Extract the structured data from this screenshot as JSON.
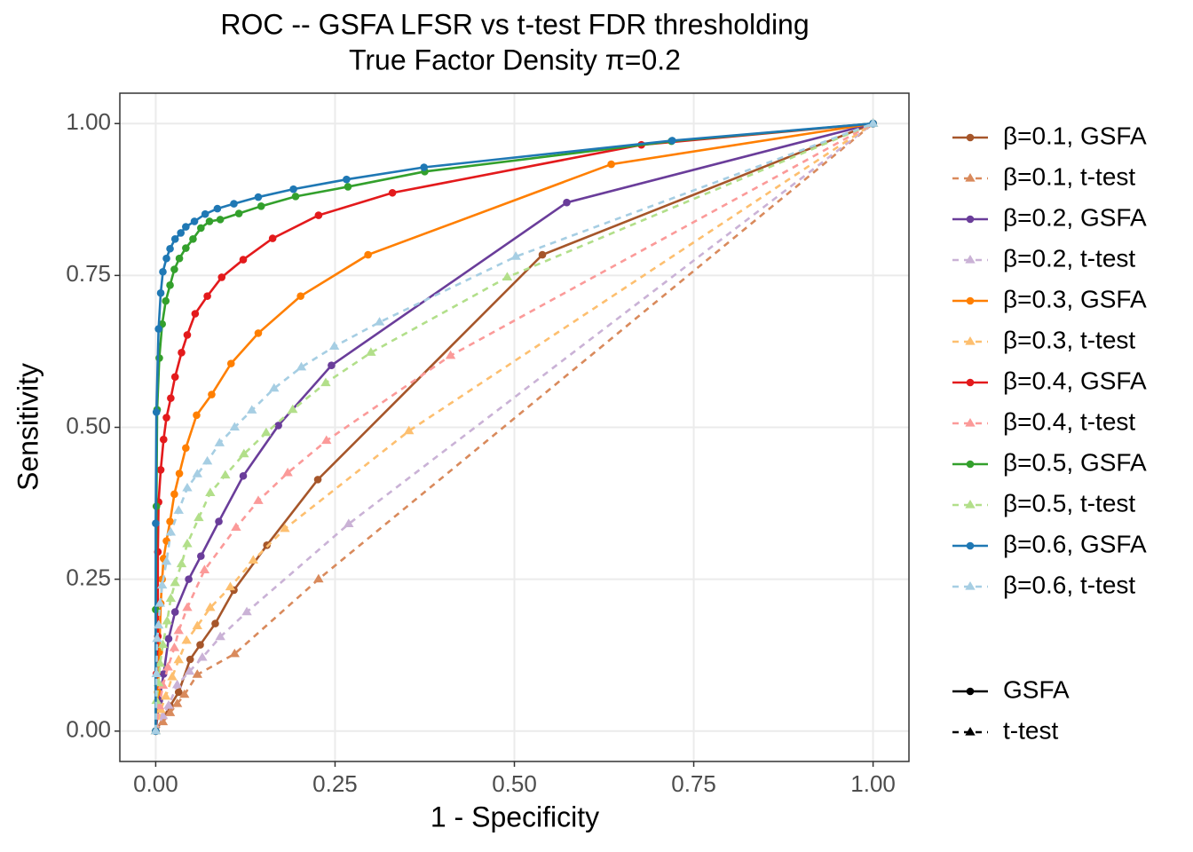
{
  "chart_data": {
    "type": "line",
    "title": "ROC -- GSFA LFSR vs t-test FDR thresholding",
    "subtitle": "True Factor Density π=0.2",
    "x_label": "1 - Specificity",
    "y_label": "Sensitivity",
    "xlim": [
      -0.05,
      1.05
    ],
    "ylim": [
      -0.05,
      1.05
    ],
    "xticks": [
      {
        "value": 0,
        "label": "0.00"
      },
      {
        "value": 0.25,
        "label": "0.25"
      },
      {
        "value": 0.5,
        "label": "0.50"
      },
      {
        "value": 0.75,
        "label": "0.75"
      },
      {
        "value": 1,
        "label": "1.00"
      }
    ],
    "yticks": [
      {
        "value": 0,
        "label": "0.00"
      },
      {
        "value": 0.25,
        "label": "0.25"
      },
      {
        "value": 0.5,
        "label": "0.50"
      },
      {
        "value": 0.75,
        "label": "0.75"
      },
      {
        "value": 1,
        "label": "1.00"
      }
    ],
    "grid": true,
    "legend_position": "right",
    "linetype_legend": [
      {
        "name": "GSFA",
        "linetype": "solid",
        "marker": "circle"
      },
      {
        "name": "t-test",
        "linetype": "dashed",
        "marker": "triangle"
      }
    ],
    "series": [
      {
        "name": "β=0.1, GSFA",
        "color": "#a6562a",
        "linetype": "solid",
        "marker": "circle",
        "x": [
          0,
          0.02,
          0.032,
          0.048,
          0.062,
          0.083,
          0.109,
          0.155,
          0.226,
          0.539,
          1
        ],
        "values": [
          0,
          0.041,
          0.064,
          0.118,
          0.142,
          0.177,
          0.232,
          0.306,
          0.414,
          0.784,
          1
        ]
      },
      {
        "name": "β=0.1, t-test",
        "color": "#d98a5c",
        "linetype": "dashed",
        "marker": "triangle",
        "x": [
          0,
          0.01,
          0.02,
          0.03,
          0.04,
          0.058,
          0.11,
          0.227,
          1
        ],
        "values": [
          0,
          0.015,
          0.03,
          0.045,
          0.06,
          0.093,
          0.127,
          0.25,
          1
        ]
      },
      {
        "name": "β=0.2, GSFA",
        "color": "#6a3d9a",
        "linetype": "solid",
        "marker": "circle",
        "x": [
          0,
          0.005,
          0.011,
          0.018,
          0.027,
          0.046,
          0.063,
          0.088,
          0.122,
          0.171,
          0.245,
          0.573,
          1
        ],
        "values": [
          0,
          0.05,
          0.094,
          0.152,
          0.196,
          0.25,
          0.288,
          0.345,
          0.42,
          0.503,
          0.602,
          0.87,
          1
        ]
      },
      {
        "name": "β=0.2, t-test",
        "color": "#cab2d6",
        "linetype": "dashed",
        "marker": "triangle",
        "x": [
          0,
          0.01,
          0.018,
          0.03,
          0.047,
          0.065,
          0.09,
          0.127,
          0.269,
          1
        ],
        "values": [
          0,
          0.025,
          0.042,
          0.076,
          0.098,
          0.121,
          0.155,
          0.196,
          0.341,
          1
        ]
      },
      {
        "name": "β=0.3, GSFA",
        "color": "#ff7f00",
        "linetype": "solid",
        "marker": "circle",
        "x": [
          0,
          0.003,
          0.005,
          0.007,
          0.009,
          0.011,
          0.015,
          0.02,
          0.026,
          0.033,
          0.042,
          0.057,
          0.078,
          0.105,
          0.143,
          0.202,
          0.296,
          0.635,
          1
        ],
        "values": [
          0,
          0.064,
          0.13,
          0.21,
          0.25,
          0.284,
          0.313,
          0.345,
          0.39,
          0.424,
          0.466,
          0.52,
          0.554,
          0.605,
          0.655,
          0.716,
          0.784,
          0.933,
          1
        ]
      },
      {
        "name": "β=0.3, t-test",
        "color": "#fdbf6f",
        "linetype": "dashed",
        "marker": "triangle",
        "x": [
          0,
          0.007,
          0.014,
          0.023,
          0.032,
          0.043,
          0.058,
          0.076,
          0.104,
          0.136,
          0.18,
          0.353,
          1
        ],
        "values": [
          0,
          0.035,
          0.057,
          0.089,
          0.117,
          0.149,
          0.173,
          0.203,
          0.237,
          0.281,
          0.333,
          0.494,
          1
        ]
      },
      {
        "name": "β=0.4, GSFA",
        "color": "#e31a1c",
        "linetype": "solid",
        "marker": "circle",
        "x": [
          0,
          0.001,
          0.003,
          0.003,
          0.004,
          0.007,
          0.011,
          0.015,
          0.021,
          0.027,
          0.036,
          0.044,
          0.055,
          0.072,
          0.092,
          0.122,
          0.163,
          0.227,
          0.33,
          0.677,
          1
        ],
        "values": [
          0,
          0.094,
          0.156,
          0.295,
          0.377,
          0.43,
          0.48,
          0.516,
          0.548,
          0.583,
          0.623,
          0.652,
          0.687,
          0.716,
          0.747,
          0.776,
          0.811,
          0.849,
          0.886,
          0.965,
          1
        ]
      },
      {
        "name": "β=0.4, t-test",
        "color": "#fb9a99",
        "linetype": "dashed",
        "marker": "triangle",
        "x": [
          0,
          0.005,
          0.01,
          0.017,
          0.026,
          0.032,
          0.044,
          0.068,
          0.112,
          0.143,
          0.184,
          0.238,
          0.411,
          1
        ],
        "values": [
          0,
          0.041,
          0.075,
          0.105,
          0.137,
          0.165,
          0.203,
          0.265,
          0.335,
          0.379,
          0.425,
          0.478,
          0.618,
          1
        ]
      },
      {
        "name": "β=0.5, GSFA",
        "color": "#33a02c",
        "linetype": "solid",
        "marker": "circle",
        "x": [
          0,
          0,
          0.001,
          0.002,
          0.005,
          0.009,
          0.014,
          0.02,
          0.026,
          0.033,
          0.042,
          0.052,
          0.063,
          0.075,
          0.09,
          0.116,
          0.147,
          0.195,
          0.268,
          0.375,
          0.719,
          1
        ],
        "values": [
          0,
          0.2,
          0.37,
          0.529,
          0.614,
          0.67,
          0.708,
          0.734,
          0.76,
          0.778,
          0.795,
          0.81,
          0.828,
          0.839,
          0.842,
          0.852,
          0.864,
          0.88,
          0.896,
          0.921,
          0.971,
          1
        ]
      },
      {
        "name": "β=0.5, t-test",
        "color": "#b2df8a",
        "linetype": "dashed",
        "marker": "triangle",
        "x": [
          0,
          0.001,
          0.004,
          0.006,
          0.01,
          0.016,
          0.021,
          0.027,
          0.036,
          0.044,
          0.06,
          0.076,
          0.097,
          0.123,
          0.154,
          0.191,
          0.237,
          0.3,
          0.49,
          1
        ],
        "values": [
          0,
          0.05,
          0.079,
          0.111,
          0.142,
          0.181,
          0.218,
          0.244,
          0.275,
          0.308,
          0.351,
          0.392,
          0.421,
          0.456,
          0.491,
          0.529,
          0.573,
          0.623,
          0.747,
          1
        ]
      },
      {
        "name": "β=0.6, GSFA",
        "color": "#1f78b4",
        "linetype": "solid",
        "marker": "circle",
        "x": [
          0,
          0,
          0.001,
          0.004,
          0.007,
          0.01,
          0.015,
          0.02,
          0.027,
          0.035,
          0.042,
          0.054,
          0.069,
          0.086,
          0.109,
          0.143,
          0.192,
          0.266,
          0.374,
          0.72,
          1
        ],
        "values": [
          0,
          0.342,
          0.525,
          0.662,
          0.721,
          0.756,
          0.778,
          0.794,
          0.81,
          0.82,
          0.83,
          0.839,
          0.851,
          0.86,
          0.868,
          0.879,
          0.892,
          0.908,
          0.928,
          0.972,
          1
        ]
      },
      {
        "name": "β=0.6, t-test",
        "color": "#a6cee3",
        "linetype": "dashed",
        "marker": "triangle",
        "x": [
          0,
          0.001,
          0.002,
          0.004,
          0.006,
          0.009,
          0.015,
          0.021,
          0.032,
          0.044,
          0.058,
          0.072,
          0.089,
          0.11,
          0.134,
          0.165,
          0.203,
          0.249,
          0.312,
          0.502,
          1
        ],
        "values": [
          0,
          0.094,
          0.152,
          0.174,
          0.21,
          0.24,
          0.279,
          0.327,
          0.363,
          0.4,
          0.423,
          0.444,
          0.474,
          0.5,
          0.528,
          0.564,
          0.599,
          0.633,
          0.673,
          0.781,
          1
        ]
      }
    ]
  }
}
